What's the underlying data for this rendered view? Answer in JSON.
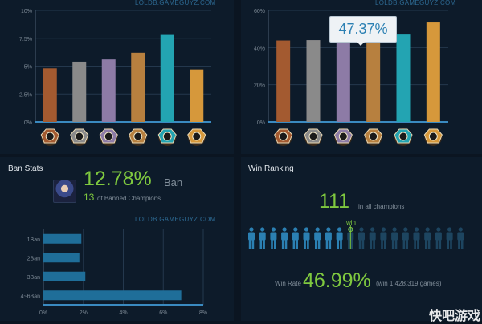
{
  "watermark_text": "LOLDB.GAMEGUYZ.COM",
  "pick_rate_chart": {
    "type": "bar",
    "categories": [
      "Bronze",
      "Silver",
      "Gold",
      "Platinum",
      "Diamond",
      "Master"
    ],
    "values": [
      4.8,
      5.4,
      5.6,
      6.2,
      7.8,
      4.7
    ],
    "colors": [
      "#a35a30",
      "#8a8a8a",
      "#8d7ba6",
      "#b7803f",
      "#23a4b2",
      "#d6983b"
    ],
    "ylim": [
      0,
      10
    ],
    "yticks": [
      "0%",
      "2.5%",
      "5%",
      "7.5%",
      "10%"
    ],
    "icons": [
      "bronze-rank-icon",
      "silver-rank-icon",
      "gold-rank-icon",
      "platinum-rank-icon",
      "diamond-rank-icon",
      "master-rank-icon"
    ]
  },
  "win_rate_chart": {
    "type": "bar",
    "categories": [
      "Bronze",
      "Silver",
      "Gold",
      "Platinum",
      "Diamond",
      "Master"
    ],
    "values": [
      43.8,
      44.0,
      47.37,
      46.0,
      47.0,
      53.5
    ],
    "colors": [
      "#a35a30",
      "#8a8a8a",
      "#8d7ba6",
      "#b7803f",
      "#23a4b2",
      "#d6983b"
    ],
    "ylim": [
      0,
      60
    ],
    "yticks": [
      "0%",
      "20%",
      "40%",
      "60%"
    ],
    "icons": [
      "bronze-rank-icon",
      "silver-rank-icon",
      "gold-rank-icon",
      "platinum-rank-icon",
      "diamond-rank-icon",
      "master-rank-icon"
    ],
    "tooltip": "47.37%"
  },
  "ban_stats": {
    "title": "Ban Stats",
    "rate": "12.78%",
    "rate_suffix": "Ban",
    "count": "13",
    "count_label": "of Banned Champions"
  },
  "ban_chart": {
    "type": "bar",
    "categories": [
      "1Ban",
      "2Ban",
      "3Ban",
      "4~6Ban"
    ],
    "values": [
      1.9,
      1.8,
      2.1,
      6.9
    ],
    "color": "#1f6e99",
    "xlim": [
      0,
      8
    ],
    "xticks": [
      "0%",
      "2%",
      "4%",
      "6%",
      "8%"
    ]
  },
  "win_ranking": {
    "title": "Win Ranking",
    "rank": "111",
    "rank_label": "in all champions",
    "win_marker": "win",
    "figures_total": 20,
    "figures_highlighted": 9,
    "win_rate_label": "Win Rate",
    "win_rate": "46.99%",
    "games": "(win 1,428,319 games)"
  },
  "corner_watermark": "快吧游戏",
  "colors": {
    "accent_green": "#7fc93f",
    "accent_blue": "#2b80b3",
    "figure_active": "#2b80b3",
    "figure_inactive": "#1d4560"
  }
}
